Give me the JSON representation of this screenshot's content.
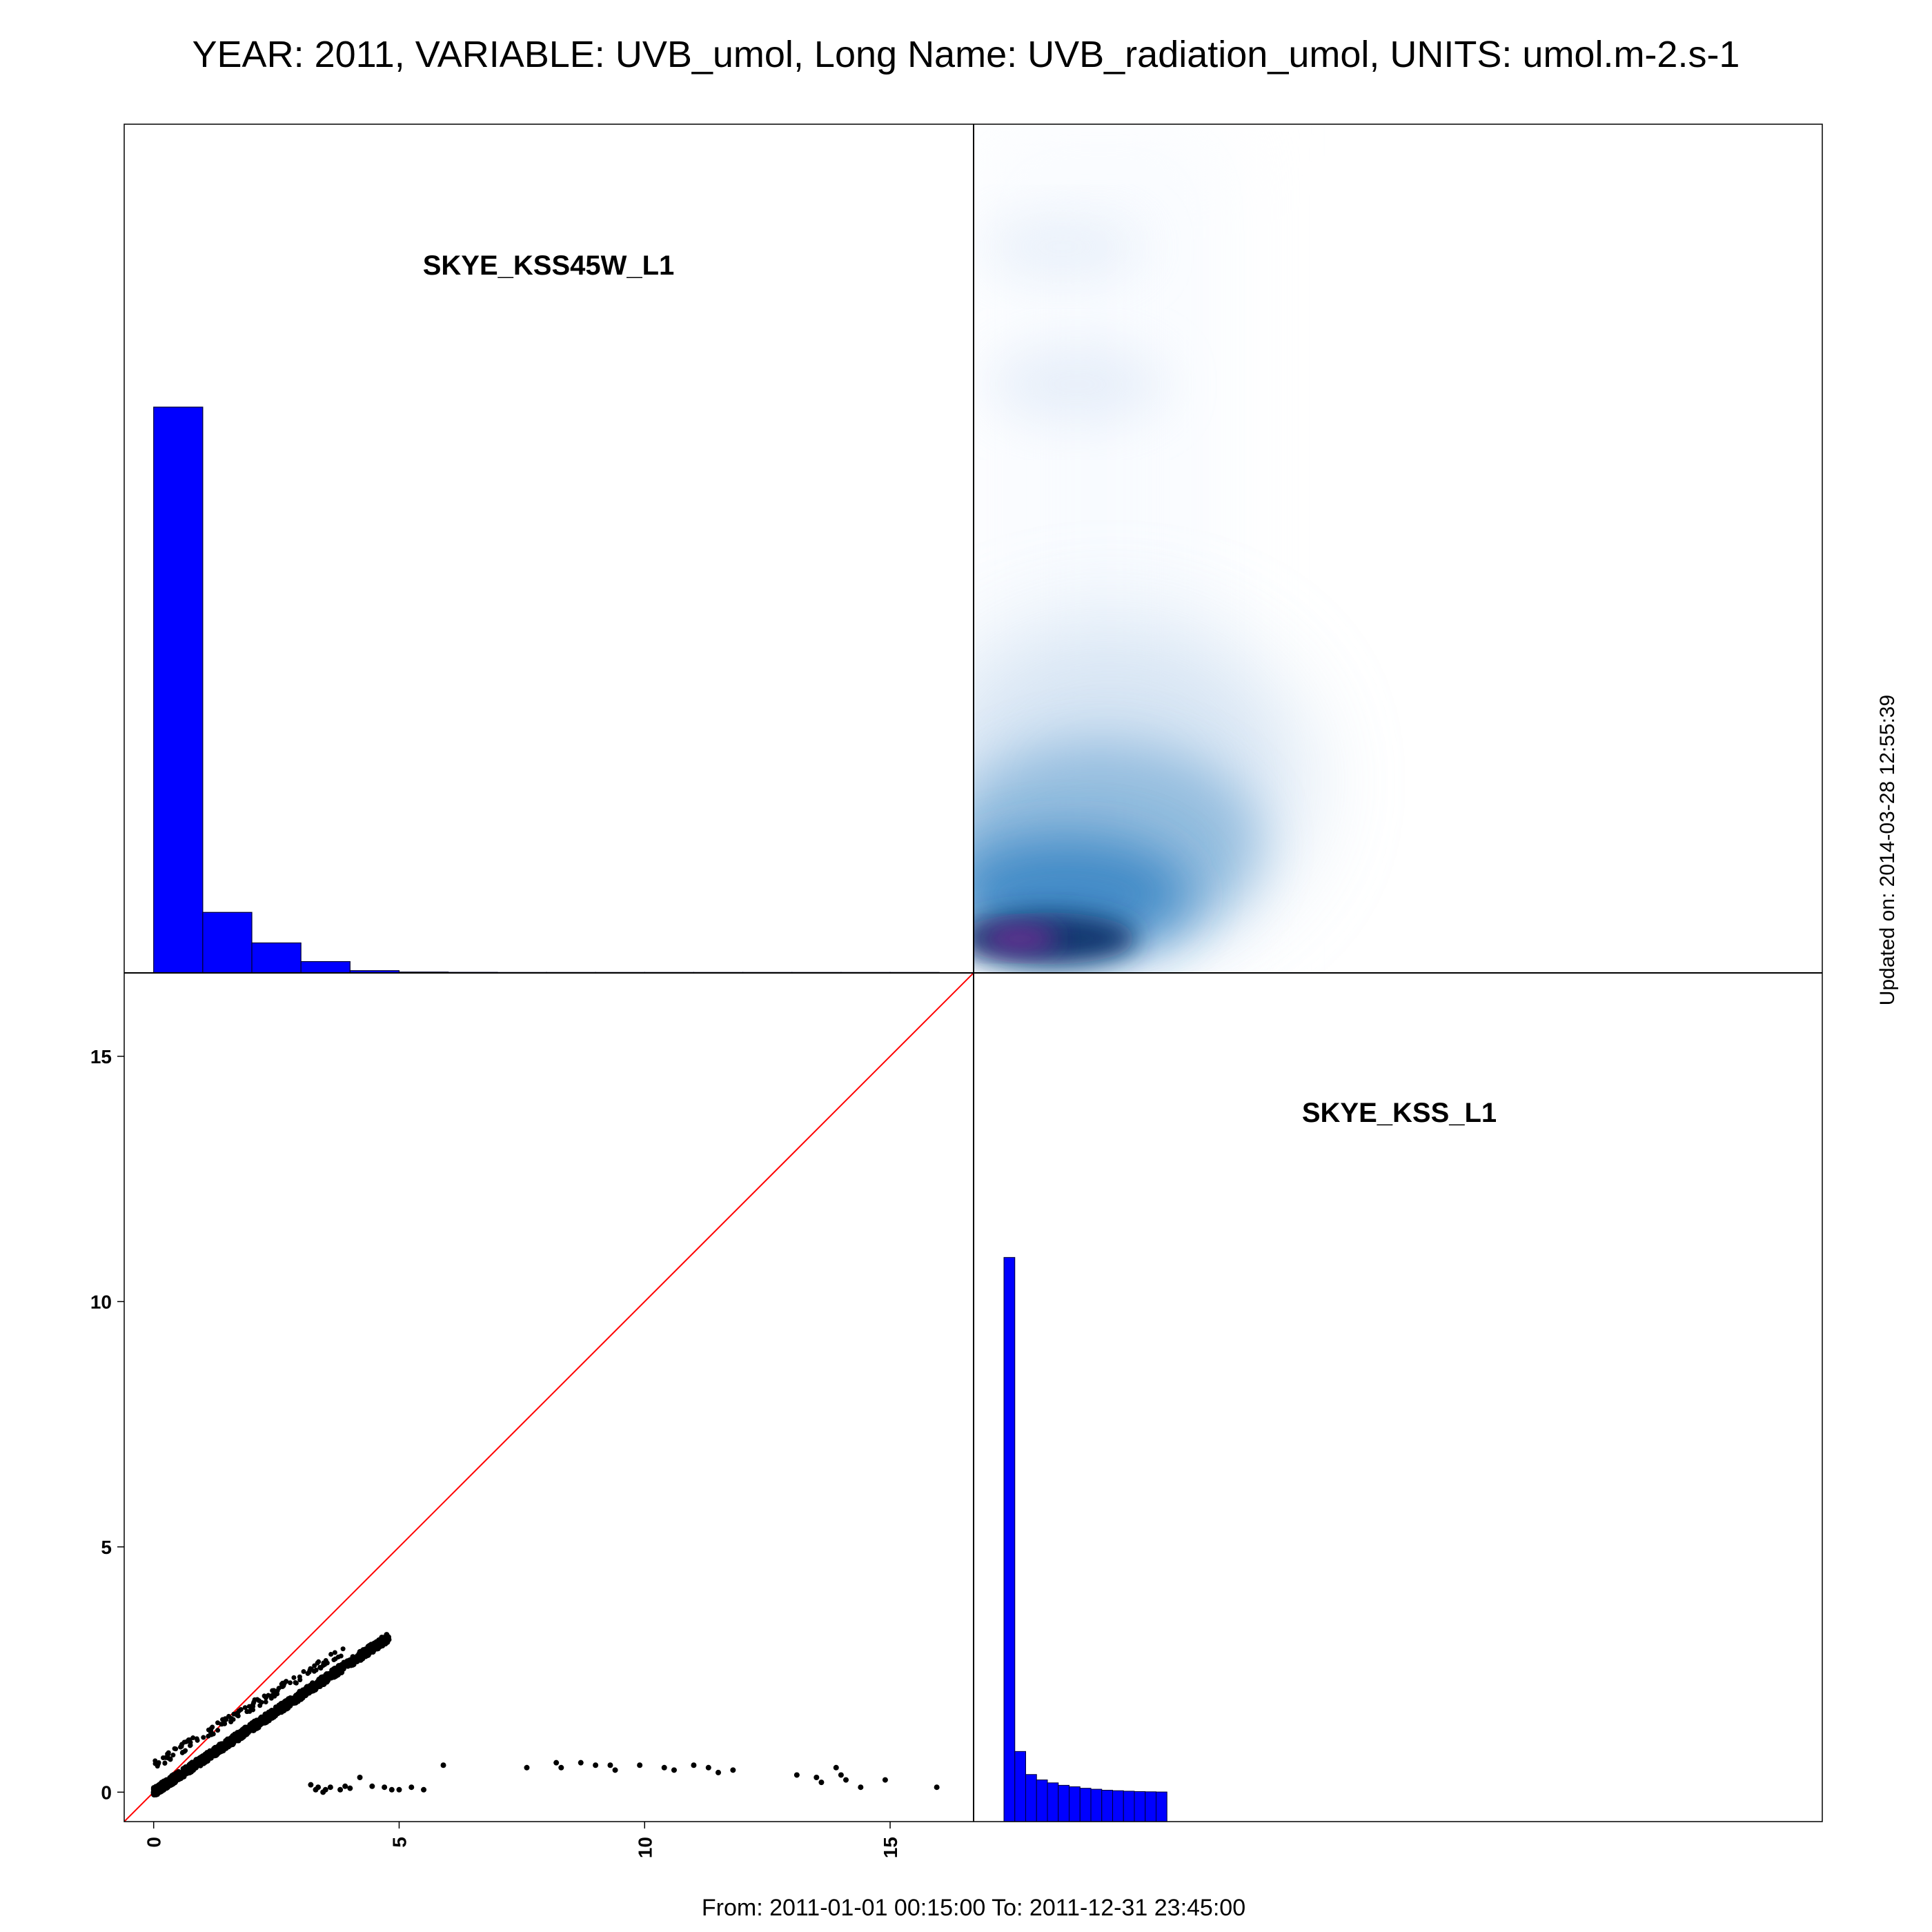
{
  "title": "YEAR: 2011, VARIABLE: UVB_umol, Long Name: UVB_radiation_umol, UNITS: umol.m-2.s-1",
  "footer": "From: 2011-01-01 00:15:00 To: 2011-12-31 23:45:00",
  "updated": "Updated on: 2014-03-28 12:55:39",
  "colors": {
    "hist": "#0000ff",
    "identity_line": "#ff0000",
    "points": "#000000",
    "density_low": "#f3f8ff",
    "density_mid": "#2f7fc1",
    "density_high": "#08306b",
    "density_peak": "#7a2f9a"
  },
  "chart_data": [
    {
      "panel": "top-left",
      "type": "histogram",
      "label": "SKYE_KSS45W_L1",
      "bins": [
        {
          "from": 0,
          "to": 1,
          "count": 1.0
        },
        {
          "from": 1,
          "to": 2,
          "count": 0.107
        },
        {
          "from": 2,
          "to": 3,
          "count": 0.053
        },
        {
          "from": 3,
          "to": 4,
          "count": 0.02
        },
        {
          "from": 4,
          "to": 5,
          "count": 0.004
        },
        {
          "from": 5,
          "to": 6,
          "count": 0.0015
        },
        {
          "from": 6,
          "to": 7,
          "count": 0.001
        },
        {
          "from": 7,
          "to": 8,
          "count": 0.0008
        },
        {
          "from": 8,
          "to": 9,
          "count": 0.0008
        },
        {
          "from": 9,
          "to": 10,
          "count": 0.0008
        },
        {
          "from": 10,
          "to": 11,
          "count": 0.0008
        },
        {
          "from": 11,
          "to": 12,
          "count": 0.0008
        },
        {
          "from": 12,
          "to": 13,
          "count": 0.0008
        },
        {
          "from": 13,
          "to": 14,
          "count": 0.0008
        },
        {
          "from": 14,
          "to": 15,
          "count": 0.0008
        },
        {
          "from": 15,
          "to": 16,
          "count": 0.0008
        }
      ],
      "xlim": [
        -0.6,
        16.7
      ]
    },
    {
      "panel": "top-right",
      "type": "heatmap",
      "description_kind": "2d-density",
      "xlim": [
        -0.6,
        16.7
      ],
      "ylim": [
        -0.6,
        16.7
      ]
    },
    {
      "panel": "bottom-left",
      "type": "scatter",
      "xlim": [
        -0.6,
        16.7
      ],
      "ylim": [
        -0.6,
        16.7
      ],
      "x_ticks": [
        0,
        5,
        10,
        15
      ],
      "y_ticks": [
        0,
        5,
        10,
        15
      ],
      "identity_line": true,
      "outliers": [
        [
          3.2,
          0.15
        ],
        [
          3.35,
          0.1
        ],
        [
          3.5,
          0.05
        ],
        [
          3.6,
          0.1
        ],
        [
          3.3,
          0.05
        ],
        [
          3.9,
          0.12
        ],
        [
          4.0,
          0.08
        ],
        [
          4.2,
          0.3
        ],
        [
          4.45,
          0.12
        ],
        [
          4.7,
          0.1
        ],
        [
          4.85,
          0.05
        ],
        [
          5.0,
          0.05
        ],
        [
          5.25,
          0.1
        ],
        [
          5.5,
          0.05
        ],
        [
          3.45,
          0.0
        ],
        [
          3.8,
          0.05
        ],
        [
          5.9,
          0.55
        ],
        [
          7.6,
          0.5
        ],
        [
          8.2,
          0.6
        ],
        [
          8.3,
          0.5
        ],
        [
          8.7,
          0.6
        ],
        [
          9.0,
          0.55
        ],
        [
          9.3,
          0.55
        ],
        [
          9.4,
          0.45
        ],
        [
          9.9,
          0.55
        ],
        [
          10.4,
          0.5
        ],
        [
          10.6,
          0.45
        ],
        [
          11.0,
          0.55
        ],
        [
          11.3,
          0.5
        ],
        [
          11.5,
          0.4
        ],
        [
          11.8,
          0.45
        ],
        [
          13.1,
          0.35
        ],
        [
          13.5,
          0.3
        ],
        [
          13.6,
          0.2
        ],
        [
          13.9,
          0.5
        ],
        [
          14.0,
          0.35
        ],
        [
          14.1,
          0.25
        ],
        [
          14.4,
          0.1
        ],
        [
          14.9,
          0.25
        ],
        [
          15.95,
          0.1
        ]
      ]
    },
    {
      "panel": "bottom-right",
      "type": "histogram",
      "label": "SKYE_KSS_L1",
      "ylim": [
        -0.6,
        16.7
      ],
      "bins": [
        {
          "from": -0.6,
          "to": -0.35,
          "count": 0.0
        },
        {
          "from": 0.0,
          "to": 0.25,
          "count": 10.9
        },
        {
          "from": 0.25,
          "to": 0.5,
          "count": 0.83
        },
        {
          "from": 0.5,
          "to": 0.75,
          "count": 0.36
        },
        {
          "from": 0.75,
          "to": 1.0,
          "count": 0.25
        },
        {
          "from": 1.0,
          "to": 1.25,
          "count": 0.19
        },
        {
          "from": 1.25,
          "to": 1.5,
          "count": 0.14
        },
        {
          "from": 1.5,
          "to": 1.75,
          "count": 0.11
        },
        {
          "from": 1.75,
          "to": 2.0,
          "count": 0.08
        },
        {
          "from": 2.0,
          "to": 2.25,
          "count": 0.06
        },
        {
          "from": 2.25,
          "to": 2.5,
          "count": 0.04
        },
        {
          "from": 2.5,
          "to": 2.75,
          "count": 0.03
        },
        {
          "from": 2.75,
          "to": 3.0,
          "count": 0.02
        },
        {
          "from": 3.0,
          "to": 3.25,
          "count": 0.012
        },
        {
          "from": 3.25,
          "to": 3.5,
          "count": 0.008
        },
        {
          "from": 3.5,
          "to": 3.75,
          "count": 0.004
        }
      ]
    }
  ]
}
